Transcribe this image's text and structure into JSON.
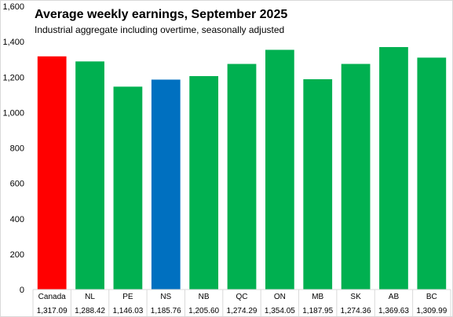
{
  "chart_data": {
    "type": "bar",
    "title": "Average weekly earnings, September 2025",
    "subtitle": "Industrial aggregate including overtime, seasonally adjusted",
    "categories": [
      "Canada",
      "NL",
      "PE",
      "NS",
      "NB",
      "QC",
      "ON",
      "MB",
      "SK",
      "AB",
      "BC"
    ],
    "values": [
      1317.09,
      1288.42,
      1146.03,
      1185.76,
      1205.6,
      1274.29,
      1354.05,
      1187.95,
      1274.36,
      1369.63,
      1309.99
    ],
    "value_labels": [
      "1,317.09",
      "1,288.42",
      "1,146.03",
      "1,185.76",
      "1,205.60",
      "1,274.29",
      "1,354.05",
      "1,187.95",
      "1,274.36",
      "1,369.63",
      "1,309.99"
    ],
    "colors": [
      "#ff0000",
      "#00b050",
      "#00b050",
      "#0070c0",
      "#00b050",
      "#00b050",
      "#00b050",
      "#00b050",
      "#00b050",
      "#00b050",
      "#00b050"
    ],
    "ylim": [
      0,
      1600
    ],
    "yticks": [
      0,
      200,
      400,
      600,
      800,
      1000,
      1200,
      1400,
      1600
    ],
    "ytick_labels": [
      "0",
      "200",
      "400",
      "600",
      "800",
      "1,000",
      "1,200",
      "1,400",
      "1,600"
    ],
    "grid": false,
    "legend": "none"
  }
}
